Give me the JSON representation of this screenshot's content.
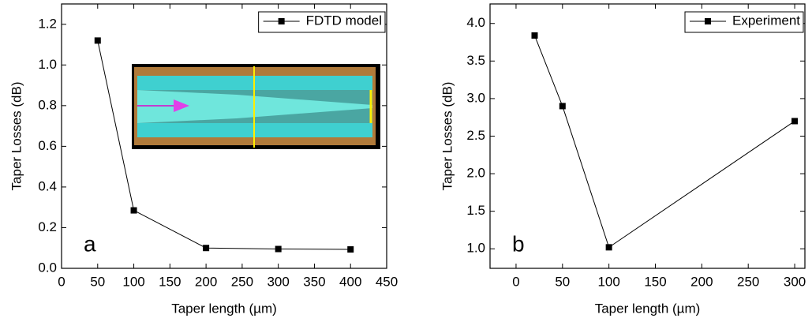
{
  "chart_data": [
    {
      "type": "line",
      "xlabel": "Taper length (µm)",
      "ylabel": "Taper Losses (dB)",
      "annotation": "a",
      "x": [
        50,
        100,
        200,
        300,
        400
      ],
      "series": [
        {
          "name": "FDTD model",
          "color": "#000000",
          "values": [
            1.12,
            0.285,
            0.1,
            0.095,
            0.093
          ]
        }
      ],
      "xlim": [
        0,
        450
      ],
      "xticks": [
        0,
        50,
        100,
        150,
        200,
        250,
        300,
        350,
        400,
        450
      ],
      "ylim": [
        0,
        1.3
      ],
      "yticks": [
        {
          "value": 0,
          "label": "0.0"
        },
        0.2,
        0.4,
        0.6,
        0.8,
        {
          "value": 1,
          "label": "1.0"
        },
        1.2
      ],
      "legend": "top-right"
    },
    {
      "type": "line",
      "xlabel": "Taper length (µm)",
      "ylabel": "Taper Losses (dB)",
      "annotation": "b",
      "x": [
        20,
        50,
        100,
        300
      ],
      "series": [
        {
          "name": "Experiment",
          "color": "#000000",
          "values": [
            3.84,
            2.9,
            1.02,
            2.7
          ]
        }
      ],
      "xlim": [
        -28,
        311
      ],
      "xticks": [
        0,
        50,
        100,
        150,
        200,
        250,
        300
      ],
      "ylim": [
        0.74,
        4.26
      ],
      "yticks": [
        {
          "value": 1,
          "label": "1.0"
        },
        1.5,
        {
          "value": 2,
          "label": "2.0"
        },
        2.5,
        {
          "value": 3,
          "label": "3.0"
        },
        3.5,
        {
          "value": 4,
          "label": "4.0"
        }
      ],
      "legend": "top-right"
    }
  ]
}
